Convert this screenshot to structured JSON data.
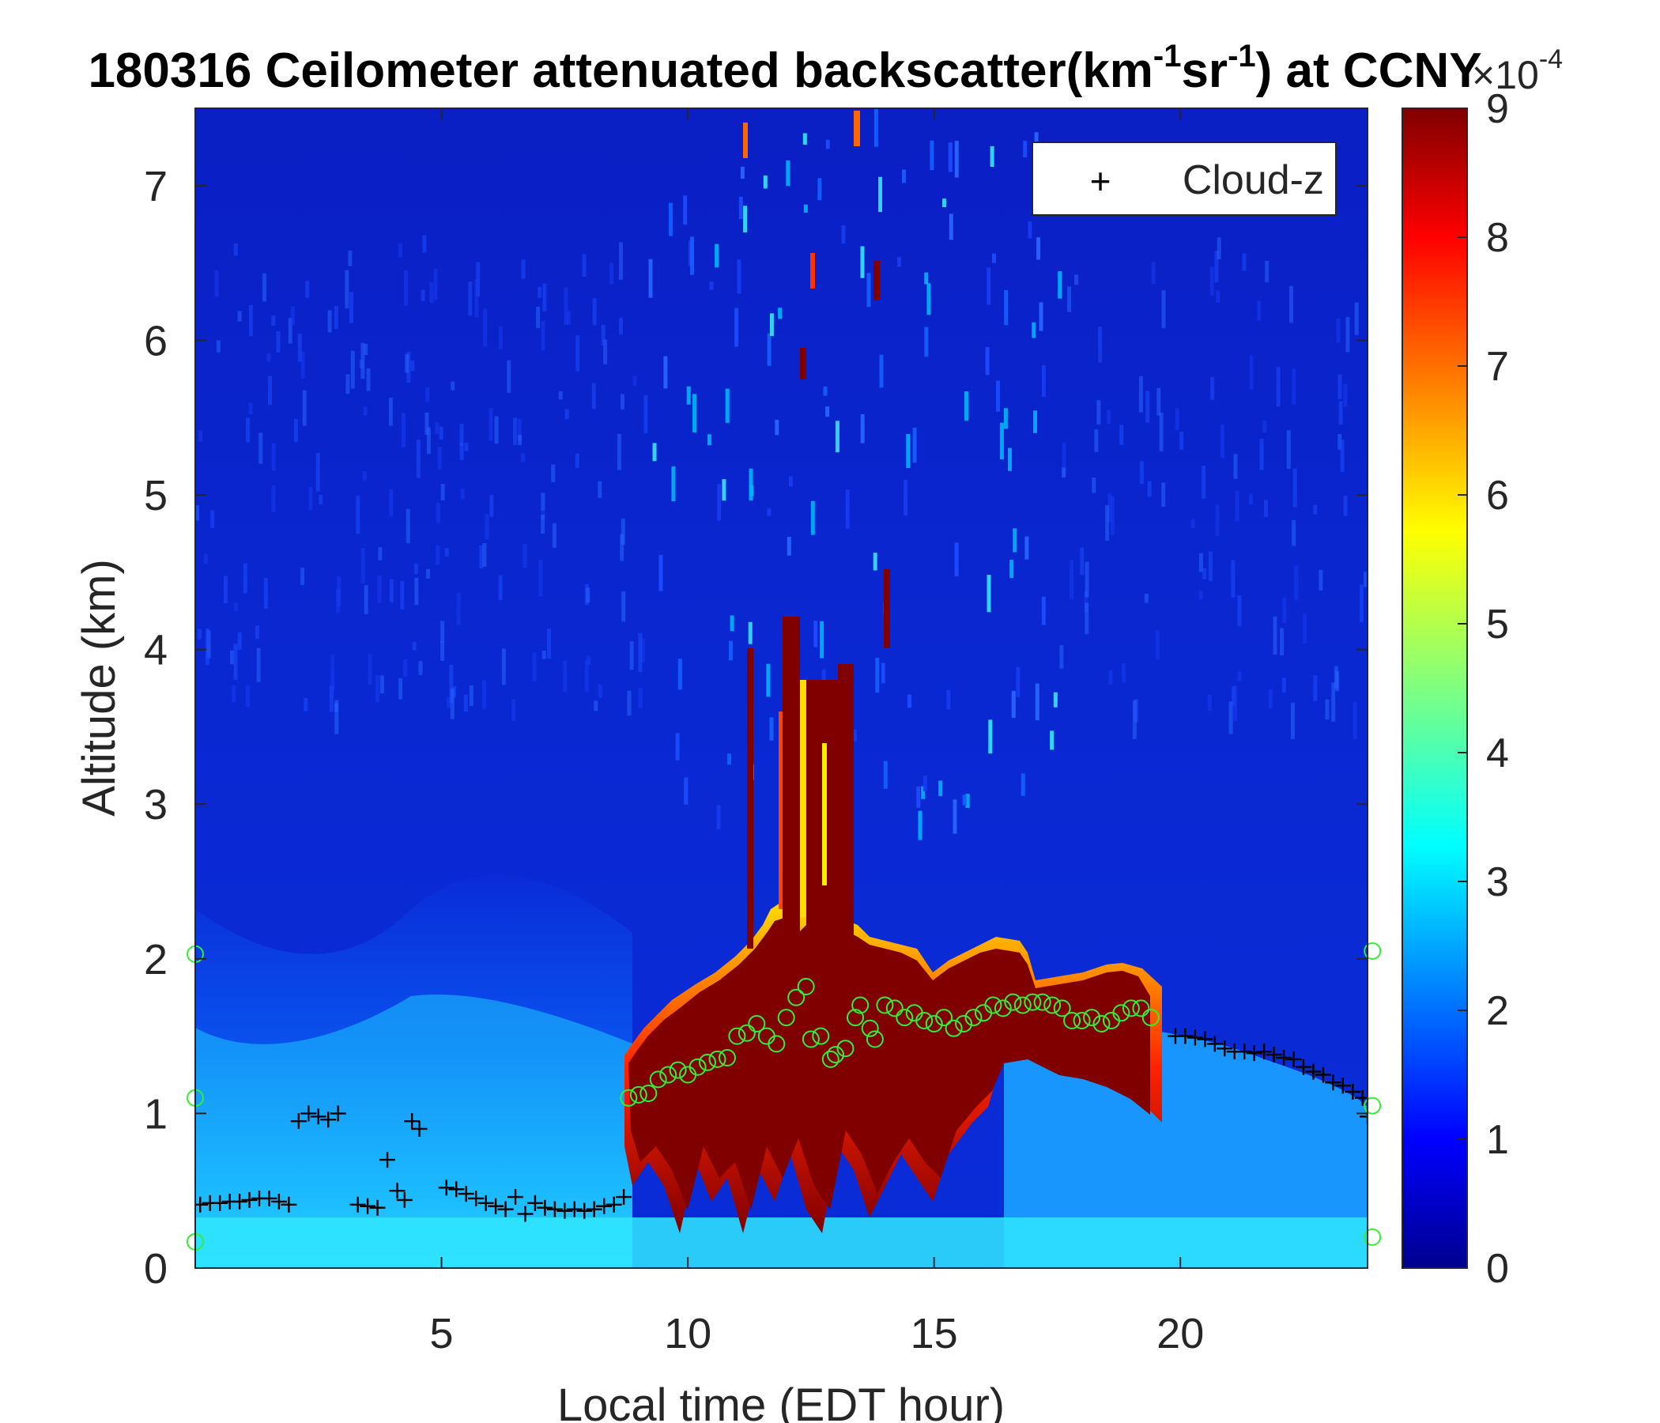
{
  "chart_data": {
    "type": "heatmap",
    "title": {
      "prefix": "180316 Ceilometer attenuated backscatter(km",
      "sup1": "-1",
      "middle": "sr",
      "sup2": "-1",
      "suffix": ") at CCNY"
    },
    "xlabel": "Local time (EDT hour)",
    "ylabel": "Altitude (km)",
    "xlim": [
      0,
      23.8
    ],
    "ylim": [
      0,
      7.5
    ],
    "x_ticks": [
      5,
      10,
      15,
      20
    ],
    "y_ticks": [
      0,
      1,
      2,
      3,
      4,
      5,
      6,
      7
    ],
    "colorbar": {
      "colormap": "jet",
      "range": [
        0,
        9
      ],
      "ticks": [
        0,
        1,
        2,
        3,
        4,
        5,
        6,
        7,
        8,
        9
      ],
      "exponent_base": "×10",
      "exponent": "-4"
    },
    "legend": {
      "position": "top-right",
      "entries": [
        {
          "marker": "+",
          "label": "Cloud-z",
          "color": "#000000"
        }
      ]
    },
    "cloud_z": [
      [
        0.1,
        0.41
      ],
      [
        0.3,
        0.42
      ],
      [
        0.5,
        0.42
      ],
      [
        0.7,
        0.43
      ],
      [
        0.9,
        0.43
      ],
      [
        1.1,
        0.44
      ],
      [
        1.3,
        0.45
      ],
      [
        1.5,
        0.45
      ],
      [
        1.7,
        0.43
      ],
      [
        1.9,
        0.41
      ],
      [
        2.1,
        0.95
      ],
      [
        2.3,
        1.0
      ],
      [
        2.5,
        0.98
      ],
      [
        2.7,
        0.96
      ],
      [
        2.9,
        1.0
      ],
      [
        3.3,
        0.41
      ],
      [
        3.5,
        0.4
      ],
      [
        3.7,
        0.39
      ],
      [
        3.9,
        0.7
      ],
      [
        4.1,
        0.5
      ],
      [
        4.25,
        0.44
      ],
      [
        4.4,
        0.95
      ],
      [
        4.55,
        0.9
      ],
      [
        5.1,
        0.52
      ],
      [
        5.3,
        0.51
      ],
      [
        5.5,
        0.48
      ],
      [
        5.7,
        0.45
      ],
      [
        5.9,
        0.42
      ],
      [
        6.1,
        0.4
      ],
      [
        6.3,
        0.38
      ],
      [
        6.5,
        0.46
      ],
      [
        6.7,
        0.35
      ],
      [
        6.9,
        0.42
      ],
      [
        7.1,
        0.39
      ],
      [
        7.3,
        0.38
      ],
      [
        7.5,
        0.37
      ],
      [
        7.7,
        0.38
      ],
      [
        7.9,
        0.37
      ],
      [
        8.1,
        0.38
      ],
      [
        8.3,
        0.4
      ],
      [
        8.5,
        0.41
      ],
      [
        8.7,
        0.46
      ],
      [
        19.9,
        1.5
      ],
      [
        20.1,
        1.5
      ],
      [
        20.3,
        1.49
      ],
      [
        20.5,
        1.48
      ],
      [
        20.7,
        1.45
      ],
      [
        20.9,
        1.42
      ],
      [
        21.1,
        1.4
      ],
      [
        21.3,
        1.4
      ],
      [
        21.5,
        1.39
      ],
      [
        21.7,
        1.4
      ],
      [
        21.9,
        1.38
      ],
      [
        22.1,
        1.36
      ],
      [
        22.3,
        1.35
      ],
      [
        22.5,
        1.3
      ],
      [
        22.7,
        1.27
      ],
      [
        22.9,
        1.25
      ],
      [
        23.1,
        1.2
      ],
      [
        23.3,
        1.18
      ],
      [
        23.5,
        1.14
      ],
      [
        23.7,
        1.1
      ],
      [
        23.8,
        0.98
      ]
    ],
    "boundary_layer_height": [
      [
        0.0,
        2.03
      ],
      [
        0.0,
        1.1
      ],
      [
        0.0,
        0.17
      ],
      [
        8.8,
        1.1
      ],
      [
        9.0,
        1.12
      ],
      [
        9.2,
        1.13
      ],
      [
        9.4,
        1.22
      ],
      [
        9.6,
        1.25
      ],
      [
        9.8,
        1.28
      ],
      [
        10.0,
        1.25
      ],
      [
        10.2,
        1.3
      ],
      [
        10.4,
        1.33
      ],
      [
        10.6,
        1.35
      ],
      [
        10.8,
        1.36
      ],
      [
        11.0,
        1.5
      ],
      [
        11.2,
        1.52
      ],
      [
        11.4,
        1.58
      ],
      [
        11.6,
        1.5
      ],
      [
        11.8,
        1.45
      ],
      [
        12.0,
        1.62
      ],
      [
        12.2,
        1.75
      ],
      [
        12.4,
        1.82
      ],
      [
        12.5,
        1.48
      ],
      [
        12.7,
        1.5
      ],
      [
        12.9,
        1.35
      ],
      [
        13.0,
        1.38
      ],
      [
        13.2,
        1.42
      ],
      [
        13.4,
        1.62
      ],
      [
        13.5,
        1.7
      ],
      [
        13.7,
        1.55
      ],
      [
        13.8,
        1.48
      ],
      [
        14.0,
        1.7
      ],
      [
        14.2,
        1.68
      ],
      [
        14.4,
        1.62
      ],
      [
        14.6,
        1.65
      ],
      [
        14.8,
        1.6
      ],
      [
        15.0,
        1.58
      ],
      [
        15.2,
        1.62
      ],
      [
        15.4,
        1.55
      ],
      [
        15.6,
        1.58
      ],
      [
        15.8,
        1.62
      ],
      [
        16.0,
        1.65
      ],
      [
        16.2,
        1.7
      ],
      [
        16.4,
        1.68
      ],
      [
        16.6,
        1.72
      ],
      [
        16.8,
        1.7
      ],
      [
        17.0,
        1.72
      ],
      [
        17.2,
        1.72
      ],
      [
        17.4,
        1.7
      ],
      [
        17.6,
        1.68
      ],
      [
        17.8,
        1.6
      ],
      [
        18.0,
        1.6
      ],
      [
        18.2,
        1.62
      ],
      [
        18.4,
        1.58
      ],
      [
        18.6,
        1.6
      ],
      [
        18.8,
        1.65
      ],
      [
        19.0,
        1.68
      ],
      [
        19.2,
        1.68
      ],
      [
        19.4,
        1.62
      ],
      [
        23.9,
        2.05
      ],
      [
        23.9,
        1.05
      ],
      [
        23.9,
        0.2
      ]
    ]
  }
}
